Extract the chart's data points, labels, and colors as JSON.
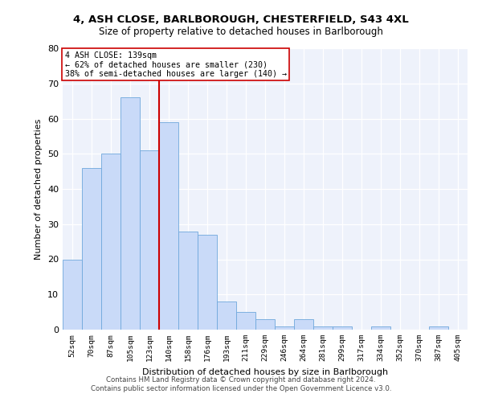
{
  "title1": "4, ASH CLOSE, BARLBOROUGH, CHESTERFIELD, S43 4XL",
  "title2": "Size of property relative to detached houses in Barlborough",
  "xlabel": "Distribution of detached houses by size in Barlborough",
  "ylabel": "Number of detached properties",
  "categories": [
    "52sqm",
    "70sqm",
    "87sqm",
    "105sqm",
    "123sqm",
    "140sqm",
    "158sqm",
    "176sqm",
    "193sqm",
    "211sqm",
    "229sqm",
    "246sqm",
    "264sqm",
    "281sqm",
    "299sqm",
    "317sqm",
    "334sqm",
    "352sqm",
    "370sqm",
    "387sqm",
    "405sqm"
  ],
  "values": [
    20,
    46,
    50,
    66,
    51,
    59,
    28,
    27,
    8,
    5,
    3,
    1,
    3,
    1,
    1,
    0,
    1,
    0,
    0,
    1,
    0
  ],
  "bar_color": "#c9daf8",
  "bar_edge_color": "#6fa8dc",
  "vline_color": "#cc0000",
  "vline_index": 4.5,
  "annotation_line1": "4 ASH CLOSE: 139sqm",
  "annotation_line2": "← 62% of detached houses are smaller (230)",
  "annotation_line3": "38% of semi-detached houses are larger (140) →",
  "annotation_box_color": "white",
  "annotation_box_edge": "#cc0000",
  "ylim": [
    0,
    80
  ],
  "yticks": [
    0,
    10,
    20,
    30,
    40,
    50,
    60,
    70,
    80
  ],
  "footer1": "Contains HM Land Registry data © Crown copyright and database right 2024.",
  "footer2": "Contains public sector information licensed under the Open Government Licence v3.0.",
  "bg_color": "#eef2fb"
}
